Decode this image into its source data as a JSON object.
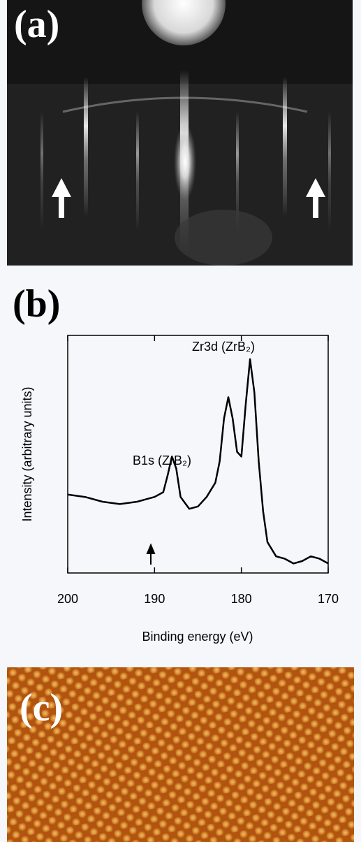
{
  "panel_labels": [
    "(a)",
    "(b)",
    "(c)"
  ],
  "chart_data": {
    "type": "line",
    "xlabel": "Binding energy (eV)",
    "ylabel": "Intensity (arbitrary units)",
    "annotations": [
      {
        "text": "Zr3d (ZrB₂)"
      },
      {
        "text": "B1s (ZrB₂)"
      }
    ],
    "x": [
      200,
      198,
      196,
      194,
      192,
      191,
      190,
      189,
      188.5,
      188,
      187.5,
      187,
      186,
      185,
      184,
      183,
      182.5,
      182,
      181.5,
      181,
      180.5,
      180,
      179.5,
      179,
      178.5,
      178,
      177.5,
      177,
      176,
      175,
      174,
      173,
      172,
      171,
      170
    ],
    "values": [
      0.33,
      0.32,
      0.3,
      0.29,
      0.3,
      0.31,
      0.32,
      0.34,
      0.41,
      0.49,
      0.44,
      0.32,
      0.27,
      0.28,
      0.32,
      0.38,
      0.47,
      0.65,
      0.74,
      0.65,
      0.51,
      0.49,
      0.71,
      0.9,
      0.76,
      0.47,
      0.26,
      0.13,
      0.07,
      0.06,
      0.04,
      0.05,
      0.07,
      0.06,
      0.04
    ],
    "color": "#000000",
    "xlim": [
      200,
      170
    ],
    "xticks": [
      200,
      190,
      180,
      170
    ],
    "ylim": [
      0,
      1
    ]
  }
}
